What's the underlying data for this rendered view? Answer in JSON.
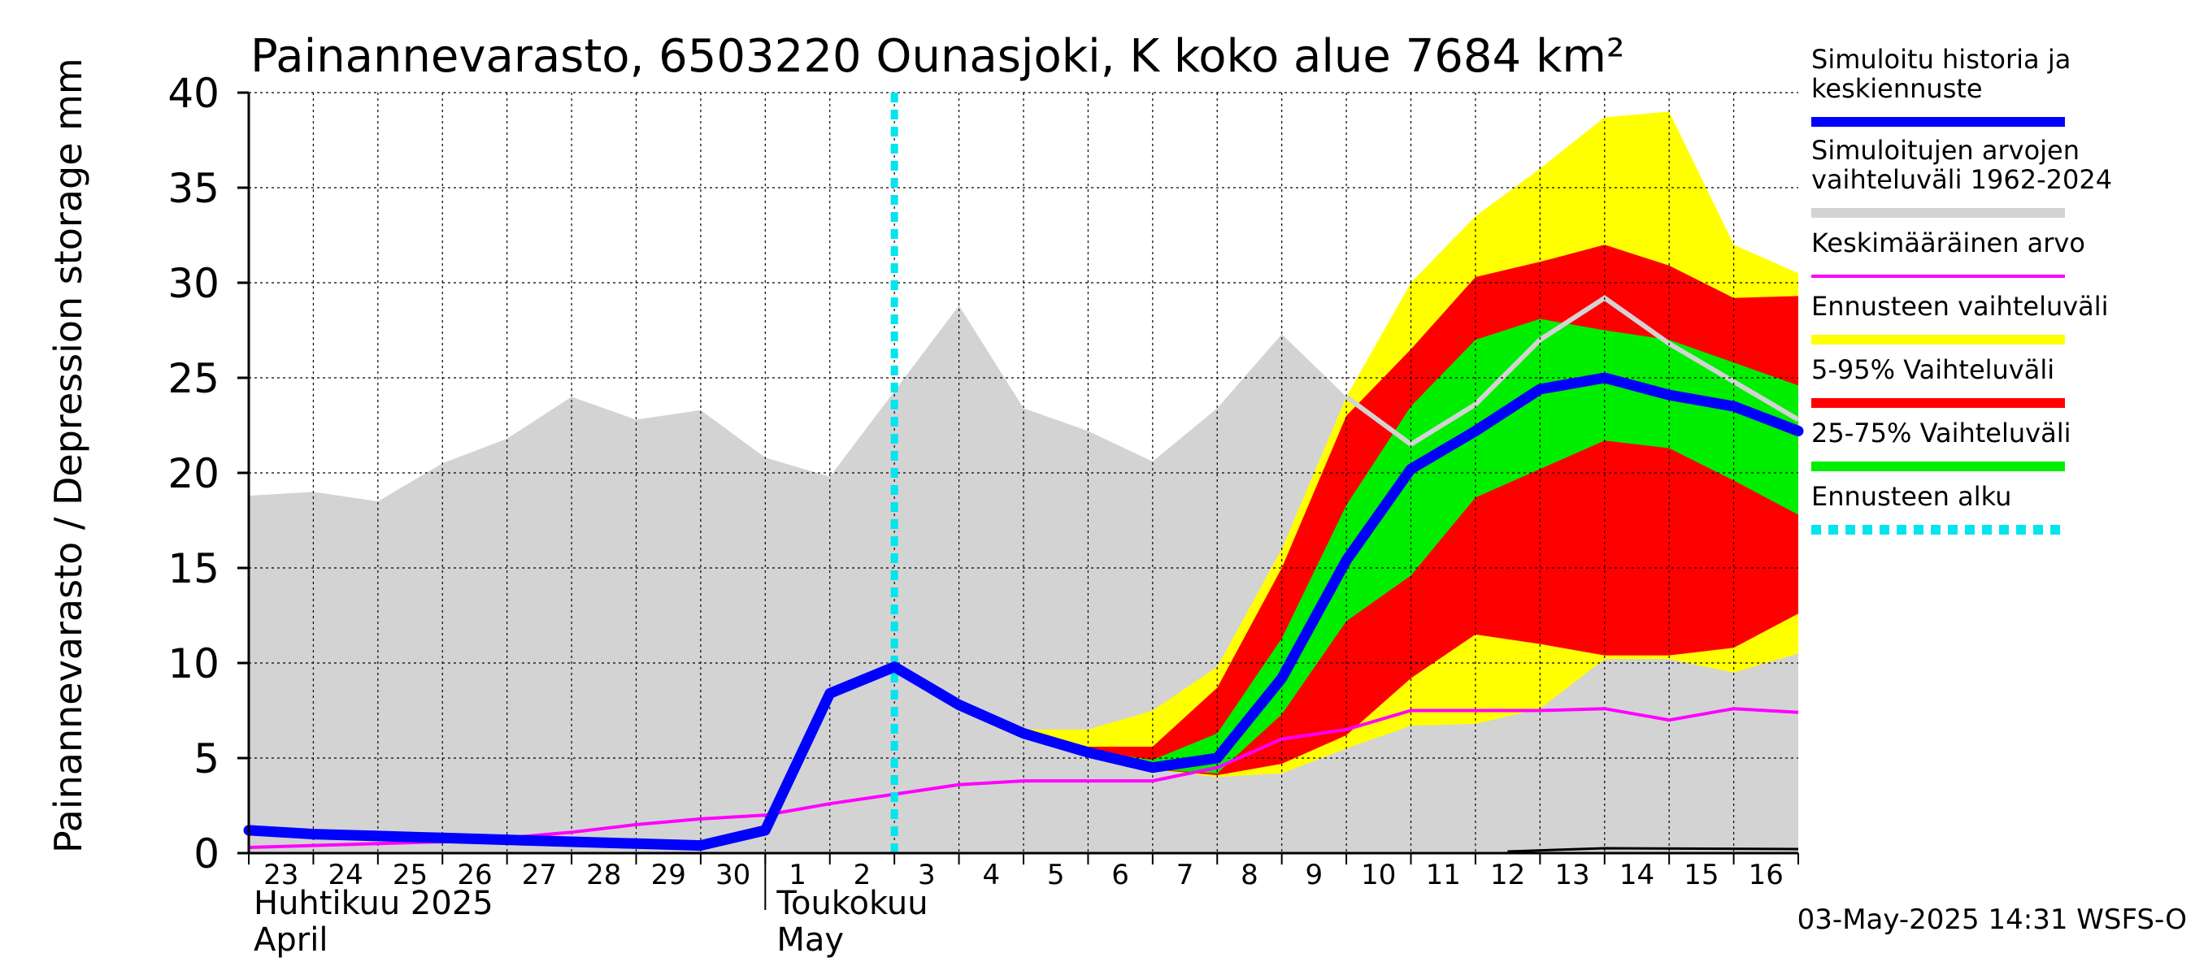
{
  "chart_data": {
    "type": "area",
    "title": "Painannevarasto, 6503220 Ounasjoki, K koko alue 7684 km²",
    "ylabel": "Painannevarasto / Depression storage    mm",
    "ylim": [
      0,
      40
    ],
    "yticks": [
      0,
      5,
      10,
      15,
      20,
      25,
      30,
      35,
      40
    ],
    "x_start": "2025-04-23",
    "x_end": "2025-05-17",
    "day_labels": [
      "23",
      "24",
      "25",
      "26",
      "27",
      "28",
      "29",
      "30",
      "1",
      "2",
      "3",
      "4",
      "5",
      "6",
      "7",
      "8",
      "9",
      "10",
      "11",
      "12",
      "13",
      "14",
      "15",
      "16"
    ],
    "month_labels": [
      {
        "fi": "Huhtikuu  2025",
        "en": "April",
        "start": "2025-04-23"
      },
      {
        "fi": "Toukokuu",
        "en": "May",
        "start": "2025-05-02"
      }
    ],
    "forecast_start": "2025-05-03",
    "timestamp": "03-May-2025 14:31 WSFS-O",
    "grid": true,
    "legend_position": "right",
    "legend": [
      {
        "label": "Simuloitu historia ja keskiennuste",
        "color": "#0000ff",
        "style": "thick"
      },
      {
        "label": "Simuloitujen arvojen vaihteluväli 1962-2024",
        "color": "#d3d3d3",
        "style": "band"
      },
      {
        "label": "Keskimääräinen arvo",
        "color": "#ff00ff",
        "style": "thin"
      },
      {
        "label": "Ennusteen vaihteluväli",
        "color": "#ffff00",
        "style": "band"
      },
      {
        "label": "5-95% Vaihteluväli",
        "color": "#ff0000",
        "style": "band"
      },
      {
        "label": "25-75% Vaihteluväli",
        "color": "#00ee00",
        "style": "band"
      },
      {
        "label": "Ennusteen alku",
        "color": "#00e5ee",
        "style": "dashed"
      }
    ],
    "x": [
      "2025-04-23",
      "2025-04-24",
      "2025-04-25",
      "2025-04-26",
      "2025-04-27",
      "2025-04-28",
      "2025-04-29",
      "2025-04-30",
      "2025-05-01",
      "2025-05-02",
      "2025-05-03",
      "2025-05-04",
      "2025-05-05",
      "2025-05-06",
      "2025-05-07",
      "2025-05-08",
      "2025-05-09",
      "2025-05-10",
      "2025-05-11",
      "2025-05-12",
      "2025-05-13",
      "2025-05-14",
      "2025-05-15",
      "2025-05-16",
      "2025-05-17"
    ],
    "history_range": {
      "upper": [
        18.8,
        19.0,
        18.5,
        20.5,
        21.8,
        24.0,
        22.8,
        23.3,
        20.8,
        19.8,
        24.3,
        28.8,
        23.4,
        22.2,
        20.6,
        23.4,
        27.3,
        24.0,
        21.5,
        23.6,
        27.0,
        29.2,
        26.8,
        24.8,
        22.8
      ],
      "lower": [
        0,
        0,
        0,
        0,
        0,
        0,
        0,
        0,
        0,
        0,
        0,
        0,
        0,
        0,
        0,
        0,
        0,
        0,
        0,
        0,
        0,
        0,
        0,
        0,
        0
      ]
    },
    "series": [
      {
        "name": "Simuloitu historia ja keskiennuste",
        "color": "#0000ff",
        "values": [
          1.2,
          1.0,
          0.9,
          0.8,
          0.7,
          0.6,
          0.5,
          0.4,
          1.2,
          8.4,
          9.8,
          7.8,
          6.3,
          5.3,
          4.5,
          5.0,
          9.2,
          15.4,
          20.2,
          22.2,
          24.4,
          25.0,
          24.1,
          23.5,
          22.2
        ]
      },
      {
        "name": "Keskimääräinen arvo",
        "color": "#ff00ff",
        "values": [
          0.3,
          0.4,
          0.5,
          0.6,
          0.8,
          1.1,
          1.5,
          1.8,
          2.0,
          2.6,
          3.1,
          3.6,
          3.8,
          3.8,
          3.8,
          4.5,
          6.0,
          6.5,
          7.5,
          7.5,
          7.5,
          7.6,
          7.0,
          7.6,
          7.4
        ]
      }
    ],
    "forecast_bands": {
      "x": [
        "2025-05-03",
        "2025-05-04",
        "2025-05-05",
        "2025-05-06",
        "2025-05-07",
        "2025-05-08",
        "2025-05-09",
        "2025-05-10",
        "2025-05-11",
        "2025-05-12",
        "2025-05-13",
        "2025-05-14",
        "2025-05-15",
        "2025-05-16",
        "2025-05-17"
      ],
      "ennuste_max": [
        9.8,
        7.9,
        6.5,
        6.5,
        7.5,
        9.8,
        16.0,
        24.0,
        30.0,
        33.5,
        36.0,
        38.7,
        39.0,
        32.0,
        30.5
      ],
      "ennuste_min": [
        9.6,
        7.6,
        6.1,
        5.2,
        4.4,
        4.0,
        4.2,
        5.5,
        6.7,
        6.8,
        7.6,
        10.2,
        10.2,
        9.5,
        10.5
      ],
      "p95": [
        9.8,
        7.9,
        6.4,
        5.6,
        5.6,
        8.7,
        15.0,
        23.0,
        26.5,
        30.3,
        31.1,
        32.0,
        30.9,
        29.2,
        29.3
      ],
      "p5": [
        9.6,
        7.7,
        6.2,
        5.2,
        4.4,
        4.1,
        4.7,
        6.2,
        9.2,
        11.5,
        11.0,
        10.4,
        10.4,
        10.8,
        12.6
      ],
      "p75": [
        9.7,
        7.8,
        6.3,
        5.4,
        4.9,
        6.3,
        11.3,
        18.3,
        23.5,
        27.0,
        28.1,
        27.5,
        27.0,
        25.8,
        24.6
      ],
      "p25": [
        9.7,
        7.8,
        6.3,
        5.2,
        4.4,
        4.2,
        7.3,
        12.2,
        14.6,
        18.7,
        20.2,
        21.7,
        21.3,
        19.6,
        17.8
      ]
    }
  }
}
